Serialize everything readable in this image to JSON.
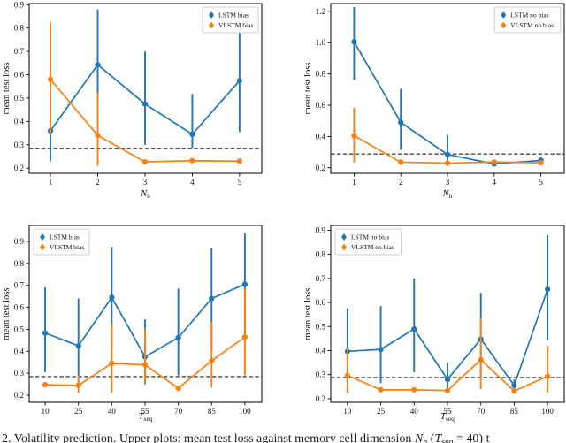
{
  "figure": {
    "background": "#ffffff",
    "caption_segments": [
      {
        "t": "2. Volatility prediction. Upper plots: mean test loss against memory cell dimension "
      },
      {
        "t": "N",
        "style": "italic"
      },
      {
        "t": "h",
        "style": "sub"
      },
      {
        "t": " ("
      },
      {
        "t": "T",
        "style": "italic"
      },
      {
        "t": "seq",
        "style": "sub"
      },
      {
        "t": " = 40) t"
      }
    ]
  },
  "colors": {
    "lstm_blue": "#1f77b4",
    "vlstm_orange": "#ff7f0e",
    "baseline_dash": "#222222",
    "legend_border": "#cccccc"
  },
  "chart_data": [
    {
      "type": "line",
      "error_bars": true,
      "title": "",
      "xlabel": {
        "main": "N",
        "sub": "h"
      },
      "ylabel": "mean test loss",
      "x": [
        1,
        2,
        3,
        4,
        5
      ],
      "xticks": [
        1,
        2,
        3,
        4,
        5
      ],
      "xlim": [
        0.55,
        5.47
      ],
      "ylim": [
        0.178,
        0.905
      ],
      "yticks": [
        0.2,
        0.3,
        0.4,
        0.5,
        0.6,
        0.7,
        0.8,
        0.9
      ],
      "baseline_dashed_y": 0.285,
      "grid": false,
      "legend_position": "upper-right",
      "series": [
        {
          "name": "LSTM bias",
          "color": "#1f77b4",
          "marker": "circle",
          "y": [
            0.36,
            0.643,
            0.475,
            0.345,
            0.575
          ],
          "err_low": [
            0.23,
            0.408,
            0.3,
            0.287,
            0.355
          ],
          "err_high": [
            0.525,
            0.88,
            0.7,
            0.518,
            0.82
          ]
        },
        {
          "name": "VLSTM bias",
          "color": "#ff7f0e",
          "marker": "circle",
          "y": [
            0.58,
            0.34,
            0.227,
            0.232,
            0.23
          ],
          "err_low": [
            0.345,
            0.21,
            0.22,
            0.224,
            0.223
          ],
          "err_high": [
            0.825,
            0.522,
            0.234,
            0.24,
            0.237
          ]
        }
      ]
    },
    {
      "type": "line",
      "error_bars": true,
      "title": "",
      "xlabel": {
        "main": "N",
        "sub": "h"
      },
      "ylabel": "mean test loss",
      "x": [
        1,
        2,
        3,
        4,
        5
      ],
      "xticks": [
        1,
        2,
        3,
        4,
        5
      ],
      "xlim": [
        0.5,
        5.5
      ],
      "ylim": [
        0.165,
        1.25
      ],
      "yticks": [
        0.2,
        0.4,
        0.6,
        0.8,
        1.0,
        1.2
      ],
      "baseline_dashed_y": 0.288,
      "grid": false,
      "legend_position": "upper-right",
      "series": [
        {
          "name": "LSTM no bias",
          "color": "#1f77b4",
          "marker": "circle",
          "y": [
            1.005,
            0.49,
            0.285,
            0.225,
            0.247
          ],
          "err_low": [
            0.762,
            0.315,
            0.23,
            0.218,
            0.228
          ],
          "err_high": [
            1.228,
            0.705,
            0.41,
            0.232,
            0.27
          ]
        },
        {
          "name": "VLSTM no bias",
          "color": "#ff7f0e",
          "marker": "circle",
          "y": [
            0.405,
            0.236,
            0.23,
            0.237,
            0.232
          ],
          "err_low": [
            0.235,
            0.228,
            0.224,
            0.23,
            0.225
          ],
          "err_high": [
            0.583,
            0.244,
            0.236,
            0.244,
            0.239
          ]
        }
      ]
    },
    {
      "type": "line",
      "error_bars": true,
      "title": "",
      "xlabel": {
        "main": "T",
        "sub": "seq"
      },
      "ylabel": "mean test loss",
      "x": [
        10,
        25,
        40,
        55,
        70,
        85,
        100
      ],
      "xticks": [
        10,
        25,
        40,
        55,
        70,
        85,
        100
      ],
      "xlim": [
        2.8,
        107.6
      ],
      "ylim": [
        0.168,
        0.972
      ],
      "yticks": [
        0.2,
        0.3,
        0.4,
        0.5,
        0.6,
        0.7,
        0.8,
        0.9
      ],
      "baseline_dashed_y": 0.285,
      "grid": false,
      "legend_position": "upper-left",
      "series": [
        {
          "name": "LSTM bias",
          "color": "#1f77b4",
          "marker": "circle",
          "y": [
            0.483,
            0.425,
            0.645,
            0.375,
            0.462,
            0.64,
            0.705
          ],
          "err_low": [
            0.305,
            0.245,
            0.42,
            0.25,
            0.29,
            0.41,
            0.465
          ],
          "err_high": [
            0.69,
            0.64,
            0.875,
            0.545,
            0.685,
            0.87,
            0.935
          ]
        },
        {
          "name": "VLSTM bias",
          "color": "#ff7f0e",
          "marker": "circle",
          "y": [
            0.248,
            0.245,
            0.345,
            0.338,
            0.232,
            0.357,
            0.465
          ],
          "err_low": [
            0.238,
            0.21,
            0.21,
            0.25,
            0.223,
            0.235,
            0.29
          ],
          "err_high": [
            0.258,
            0.29,
            0.525,
            0.505,
            0.241,
            0.535,
            0.685
          ]
        }
      ]
    },
    {
      "type": "line",
      "error_bars": true,
      "title": "",
      "xlabel": {
        "main": "T",
        "sub": "seq"
      },
      "ylabel": "mean test loss",
      "x": [
        10,
        25,
        40,
        55,
        70,
        85,
        100
      ],
      "xticks": [
        10,
        25,
        40,
        55,
        70,
        85,
        100
      ],
      "xlim": [
        2.5,
        107.5
      ],
      "ylim": [
        0.185,
        0.92
      ],
      "yticks": [
        0.2,
        0.3,
        0.4,
        0.5,
        0.6,
        0.7,
        0.8,
        0.9
      ],
      "baseline_dashed_y": 0.288,
      "grid": false,
      "legend_position": "upper-left",
      "series": [
        {
          "name": "LSTM no bias",
          "color": "#1f77b4",
          "marker": "circle",
          "y": [
            0.397,
            0.405,
            0.49,
            0.28,
            0.448,
            0.255,
            0.655
          ],
          "err_low": [
            0.27,
            0.265,
            0.31,
            0.235,
            0.29,
            0.23,
            0.445
          ],
          "err_high": [
            0.575,
            0.585,
            0.7,
            0.35,
            0.64,
            0.28,
            0.88
          ]
        },
        {
          "name": "VLSTM no bias",
          "color": "#ff7f0e",
          "marker": "circle",
          "y": [
            0.297,
            0.237,
            0.237,
            0.234,
            0.362,
            0.232,
            0.293
          ],
          "err_low": [
            0.225,
            0.228,
            0.228,
            0.226,
            0.24,
            0.222,
            0.225
          ],
          "err_high": [
            0.41,
            0.246,
            0.246,
            0.242,
            0.535,
            0.242,
            0.42
          ]
        }
      ]
    }
  ]
}
